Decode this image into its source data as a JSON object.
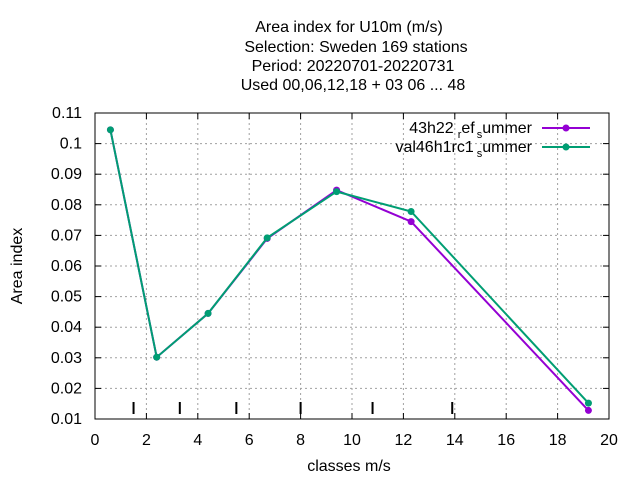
{
  "chart_data": {
    "type": "line",
    "title_lines": [
      "Area index  for U10m (m/s)",
      "Selection: Sweden     169 stations",
      "Period: 20220701-20220731",
      "Used  00,06,12,18  + 03 06 ... 48"
    ],
    "xlabel": "classes m/s",
    "ylabel": "Area index",
    "xlim": [
      0,
      20
    ],
    "ylim": [
      0.01,
      0.11
    ],
    "x_ticks": [
      0,
      2,
      4,
      6,
      8,
      10,
      12,
      14,
      16,
      18,
      20
    ],
    "y_ticks": [
      0.01,
      0.02,
      0.03,
      0.04,
      0.05,
      0.06,
      0.07,
      0.08,
      0.09,
      0.1,
      0.11
    ],
    "y_tick_labels": [
      "0.01",
      "0.02",
      "0.03",
      "0.04",
      "0.05",
      "0.06",
      "0.07",
      "0.08",
      "0.09",
      "0.1",
      "0.11"
    ],
    "grid": true,
    "legend_position": "top-right",
    "class_boundaries": [
      1.5,
      3.3,
      5.5,
      8.0,
      10.8,
      13.9
    ],
    "series": [
      {
        "legend_main": "43h22",
        "legend_sub1": "r",
        "legend_mid": "ef",
        "legend_sub2": "s",
        "legend_end": "ummer",
        "color": "#9400d3",
        "x": [
          0.6,
          2.4,
          4.4,
          6.7,
          9.4,
          12.3,
          19.2
        ],
        "y": [
          0.1045,
          0.0302,
          0.0445,
          0.069,
          0.0848,
          0.0745,
          0.0128
        ]
      },
      {
        "legend_main": "val46h1rc1",
        "legend_sub1": "",
        "legend_mid": "",
        "legend_sub2": "s",
        "legend_end": "ummer",
        "color": "#009e73",
        "x": [
          0.6,
          2.4,
          4.4,
          6.7,
          9.4,
          12.3,
          19.2
        ],
        "y": [
          0.1045,
          0.0302,
          0.0445,
          0.0692,
          0.0843,
          0.0778,
          0.0152
        ]
      }
    ]
  }
}
